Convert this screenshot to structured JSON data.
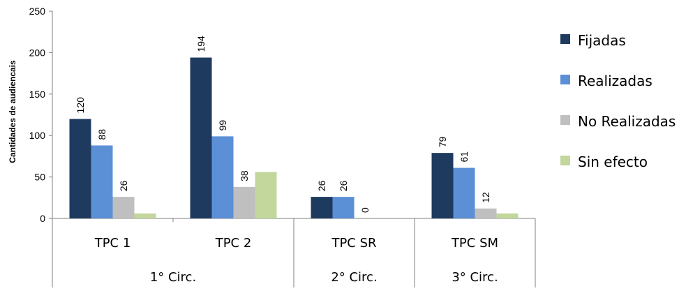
{
  "chart_data": {
    "type": "bar",
    "ylabel": "Cantidades de audiencais",
    "ylim": [
      0,
      250
    ],
    "yticks": [
      0,
      50,
      100,
      150,
      200,
      250
    ],
    "grid": false,
    "legend_position": "right",
    "categories": [
      "TPC 1",
      "TPC 2",
      "TPC SR",
      "TPC SM"
    ],
    "groups": [
      {
        "label": "1° Circ.",
        "categories": [
          "TPC 1",
          "TPC 2"
        ]
      },
      {
        "label": "2° Circ.",
        "categories": [
          "TPC SR"
        ]
      },
      {
        "label": "3° Circ.",
        "categories": [
          "TPC SM"
        ]
      }
    ],
    "series": [
      {
        "name": "Fijadas",
        "color": "#1f3a5f",
        "values": [
          120,
          194,
          26,
          79
        ],
        "labels": [
          "120",
          "194",
          "26",
          "79"
        ]
      },
      {
        "name": "Realizadas",
        "color": "#5b8fd6",
        "values": [
          88,
          99,
          26,
          61
        ],
        "labels": [
          "88",
          "99",
          "26",
          "61"
        ]
      },
      {
        "name": "No Realizadas",
        "color": "#bfbfbf",
        "values": [
          26,
          38,
          0,
          12
        ],
        "labels": [
          "26",
          "38",
          "0",
          "12"
        ]
      },
      {
        "name": "Sin efecto",
        "color": "#c3d69b",
        "values": [
          6,
          56,
          0,
          6
        ],
        "labels": [
          "",
          "",
          "",
          ""
        ]
      }
    ]
  }
}
